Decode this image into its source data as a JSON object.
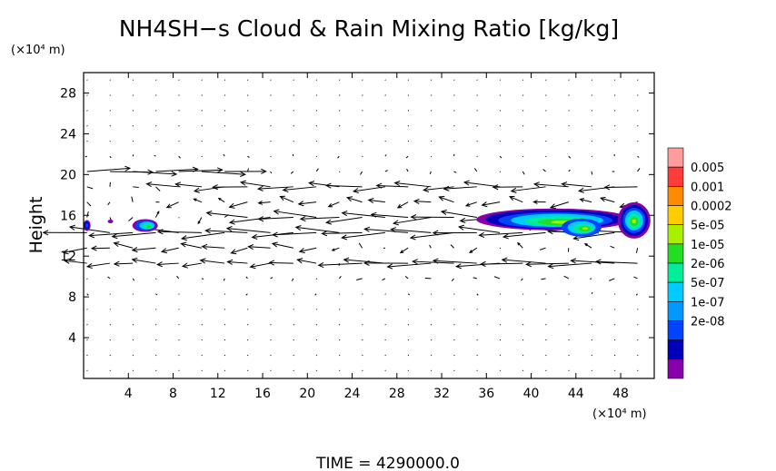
{
  "chart_data": {
    "type": "contour-vector",
    "title": "NH4SH−s Cloud & Rain Mixing Ratio [kg/kg]",
    "xlabel": "",
    "ylabel": "Height",
    "x_unit": "(×10⁴ m)",
    "y_unit": "(×10⁴ m)",
    "xlim": [
      0,
      51
    ],
    "ylim": [
      0,
      30
    ],
    "xticks": [
      "4",
      "8",
      "12",
      "16",
      "20",
      "24",
      "28",
      "32",
      "36",
      "40",
      "44",
      "48"
    ],
    "yticks": [
      "4",
      "8",
      "12",
      "16",
      "20",
      "24",
      "28"
    ],
    "colorbar": {
      "labels": [
        "0.005",
        "0.001",
        "0.0002",
        "5e-05",
        "1e-05",
        "2e-06",
        "5e-07",
        "1e-07",
        "2e-08"
      ],
      "colors": [
        "#ff9c9c",
        "#ff3c3c",
        "#ff8c00",
        "#ffcc00",
        "#aaee00",
        "#22dd22",
        "#00ee99",
        "#00ccff",
        "#0099ff",
        "#0044ff",
        "#0000bb",
        "#8800aa"
      ]
    },
    "features": [
      {
        "name": "eastward-jet",
        "y": 20.0,
        "x_range": [
          0,
          14
        ]
      },
      {
        "name": "westward-jet",
        "y": 18.3,
        "x_range": [
          8,
          51
        ]
      },
      {
        "name": "westward-jet",
        "y": 16.2,
        "x_range": [
          13,
          51
        ]
      },
      {
        "name": "westward-jet",
        "y": 14.0,
        "x_range": [
          0,
          51
        ]
      },
      {
        "name": "westward-jet",
        "y": 12.0,
        "x_range": [
          0,
          22
        ]
      },
      {
        "name": "westward-jet",
        "y": 11.0,
        "x_range": [
          23,
          51
        ]
      }
    ],
    "cloud_patches": [
      {
        "x": 0.3,
        "y": 15.0,
        "level": "5e-07"
      },
      {
        "x": 5.5,
        "y": 15.0,
        "level": "1e-05"
      },
      {
        "x": 42.0,
        "y": 15.5,
        "level": "5e-05"
      },
      {
        "x": 49.0,
        "y": 15.5,
        "level": "5e-05"
      }
    ]
  },
  "footer": {
    "time_label": "TIME  =  4290000.0"
  }
}
